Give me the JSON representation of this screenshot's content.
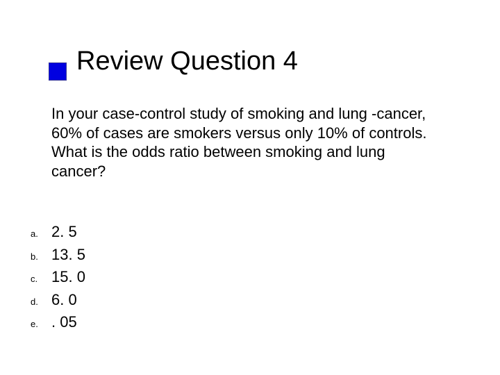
{
  "colors": {
    "title_square_fill": "#0000e0",
    "title_square_border": "#333399",
    "background": "#ffffff",
    "text": "#000000"
  },
  "typography": {
    "title_fontsize_pt": 38,
    "body_fontsize_pt": 22,
    "option_label_fontsize_pt": 13,
    "font_family": "Verdana"
  },
  "title": "Review Question 4",
  "question": "In your case-control study of smoking and lung -cancer, 60% of cases are smokers versus only 10% of controls. What is the odds ratio between smoking and lung cancer?",
  "options": [
    {
      "label": "a.",
      "text": "2. 5"
    },
    {
      "label": "b.",
      "text": "13. 5"
    },
    {
      "label": "c.",
      "text": "15. 0"
    },
    {
      "label": "d.",
      "text": "6. 0"
    },
    {
      "label": "e.",
      "text": ". 05"
    }
  ]
}
